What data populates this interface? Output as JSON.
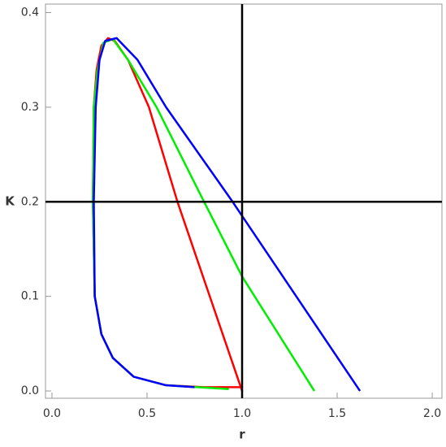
{
  "chart_data": {
    "type": "line",
    "xlabel": "r",
    "ylabel": "K",
    "xlim": [
      -0.034,
      2.051
    ],
    "ylim": [
      -0.0077,
      0.409
    ],
    "xticks": [
      {
        "value": 0,
        "label": "0.0"
      },
      0.5,
      {
        "value": 1,
        "label": "1.0"
      },
      1.5,
      {
        "value": 2,
        "label": "2.0"
      }
    ],
    "yticks": [
      {
        "value": 0,
        "label": "0.0"
      },
      0.1,
      0.2,
      0.3,
      0.4
    ],
    "vlines": [
      1
    ],
    "hlines": [
      0.2
    ],
    "line_color": "#000000",
    "series": [
      {
        "color": "#ff0000",
        "x": [
          1.0,
          0.83,
          0.66,
          0.51,
          0.4,
          0.33,
          0.295,
          0.26,
          0.235,
          0.22,
          0.215,
          0.225,
          0.26,
          0.32,
          0.43,
          0.6,
          0.8,
          1.0
        ],
        "values": [
          0.0,
          0.1,
          0.2,
          0.3,
          0.35,
          0.37,
          0.373,
          0.365,
          0.34,
          0.3,
          0.2,
          0.1,
          0.06,
          0.035,
          0.015,
          0.006,
          0.004,
          0.004
        ]
      },
      {
        "color": "#00ee00",
        "x": [
          1.38,
          1.0,
          0.8,
          0.55,
          0.4,
          0.32,
          0.27,
          0.24,
          0.22,
          0.215,
          0.225,
          0.26,
          0.32,
          0.43,
          0.6,
          0.93
        ],
        "values": [
          0.0,
          0.121,
          0.2,
          0.3,
          0.35,
          0.372,
          0.368,
          0.34,
          0.3,
          0.2,
          0.1,
          0.06,
          0.035,
          0.015,
          0.006,
          0.002
        ]
      },
      {
        "color": "#0000ff",
        "x": [
          1.62,
          1.0,
          0.95,
          0.6,
          0.45,
          0.34,
          0.28,
          0.25,
          0.23,
          0.22,
          0.225,
          0.26,
          0.32,
          0.43,
          0.6,
          0.75
        ],
        "values": [
          0.0,
          0.185,
          0.2,
          0.3,
          0.35,
          0.373,
          0.37,
          0.35,
          0.3,
          0.2,
          0.1,
          0.06,
          0.035,
          0.015,
          0.006,
          0.004
        ]
      }
    ]
  }
}
